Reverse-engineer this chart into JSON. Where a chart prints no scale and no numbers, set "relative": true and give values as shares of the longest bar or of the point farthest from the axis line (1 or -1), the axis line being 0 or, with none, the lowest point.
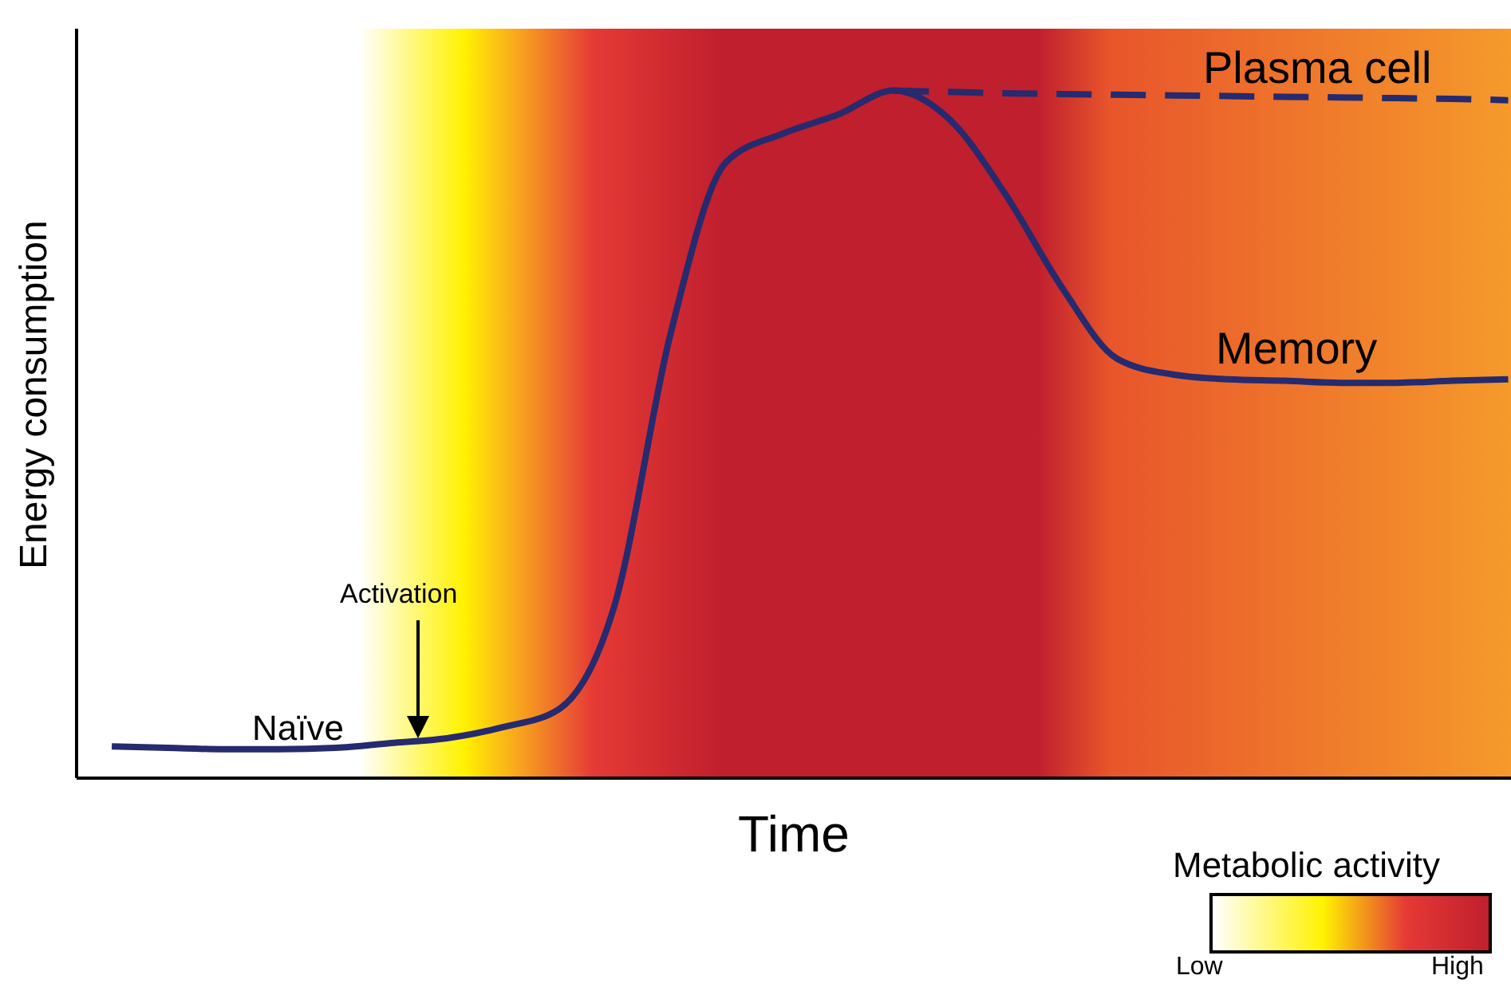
{
  "chart_data": {
    "type": "line",
    "relative": true,
    "xlabel": "Time",
    "ylabel": "Energy consumption",
    "clabel": "Metabolic activity",
    "marker": "none",
    "categories": [
      null,
      null,
      null,
      null,
      null,
      null,
      null,
      null,
      null,
      null,
      null,
      null,
      null,
      null,
      null,
      null,
      null,
      null,
      null,
      null,
      null,
      null,
      null,
      null,
      null,
      null
    ],
    "series": [
      {
        "name": "Memory",
        "color": "#262a6e",
        "line_style": "solid",
        "values": [
          0.046,
          0.044,
          0.042,
          0.042,
          0.044,
          0.051,
          0.058,
          0.074,
          0.1,
          0.251,
          0.645,
          0.896,
          0.937,
          0.965,
          1.0,
          0.958,
          0.849,
          0.715,
          0.61,
          0.587,
          0.58,
          0.578,
          0.575,
          0.575,
          0.578,
          0.58
        ]
      },
      {
        "name": "Plasma cell",
        "color": "#262a6e",
        "line_style": "dashed",
        "values": [
          null,
          null,
          null,
          null,
          null,
          null,
          null,
          null,
          null,
          null,
          null,
          null,
          null,
          null,
          1.0,
          0.998,
          0.996,
          0.995,
          0.994,
          0.993,
          0.992,
          0.991,
          0.99,
          0.989,
          0.988,
          0.986
        ]
      }
    ],
    "annotations": [
      "Naïve",
      "Activation",
      "Low",
      "High"
    ]
  }
}
